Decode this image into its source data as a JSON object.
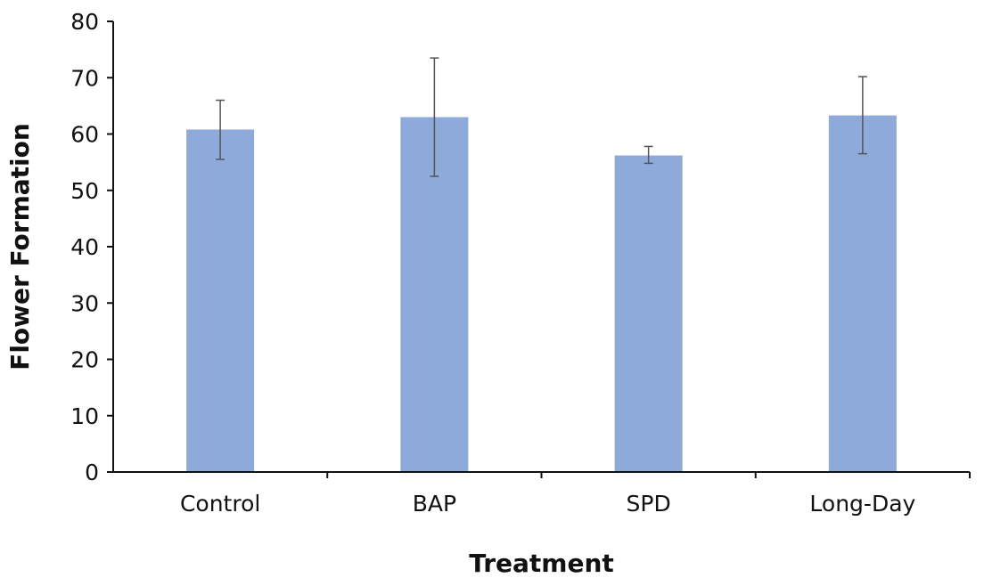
{
  "chart_data": {
    "type": "bar",
    "title": "",
    "xlabel": "Treatment",
    "ylabel": "Flower Formation",
    "categories": [
      "Control",
      "BAP",
      "SPD",
      "Long-Day"
    ],
    "values": [
      60.8,
      63.0,
      56.2,
      63.3
    ],
    "error_bars": [
      {
        "low": 55.5,
        "high": 66.0
      },
      {
        "low": 52.5,
        "high": 73.5
      },
      {
        "low": 54.8,
        "high": 57.8
      },
      {
        "low": 56.5,
        "high": 70.2
      }
    ],
    "ylim": [
      0,
      80
    ],
    "yticks": [
      0,
      10,
      20,
      30,
      40,
      50,
      60,
      70,
      80
    ],
    "ytick_labels": [
      "0",
      "10",
      "20",
      "30",
      "40",
      "50",
      "60",
      "70",
      "80"
    ],
    "grid": false,
    "colors": {
      "bar": "#8eaadb",
      "axis": "#111111",
      "error": "#555555"
    }
  }
}
